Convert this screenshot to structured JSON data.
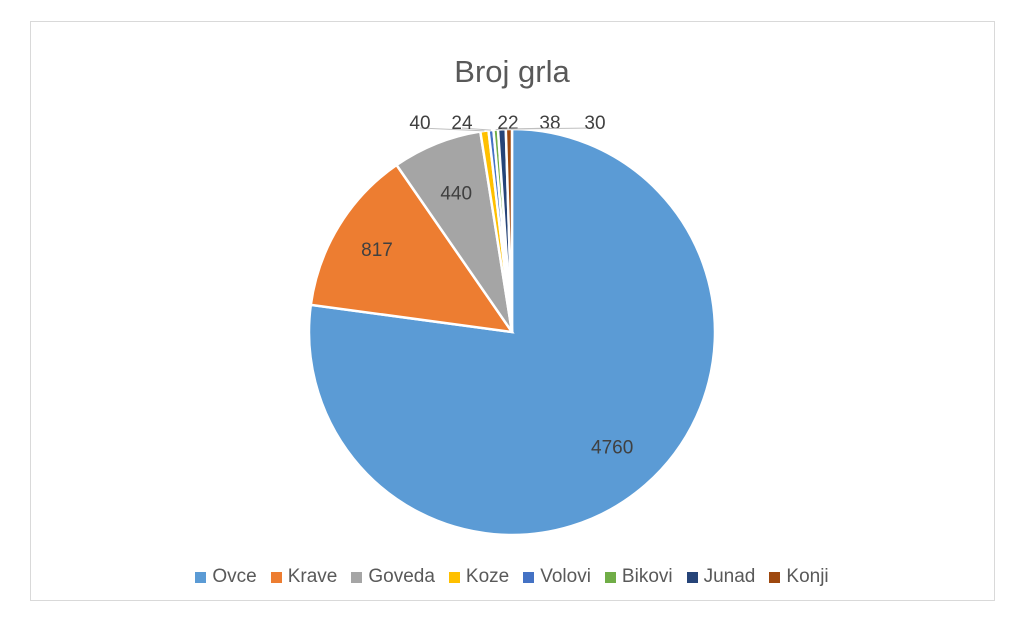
{
  "chart_data": {
    "type": "pie",
    "title": "Broj grla",
    "categories": [
      "Ovce",
      "Krave",
      "Goveda",
      "Koze",
      "Volovi",
      "Bikovi",
      "Junad",
      "Konji"
    ],
    "values": [
      4760,
      817,
      440,
      40,
      24,
      22,
      38,
      30
    ],
    "colors": [
      "#5b9bd5",
      "#ed7d31",
      "#a5a5a5",
      "#ffc000",
      "#4472c4",
      "#70ad47",
      "#264478",
      "#9e480e"
    ],
    "legend_position": "bottom",
    "data_labels": true
  }
}
